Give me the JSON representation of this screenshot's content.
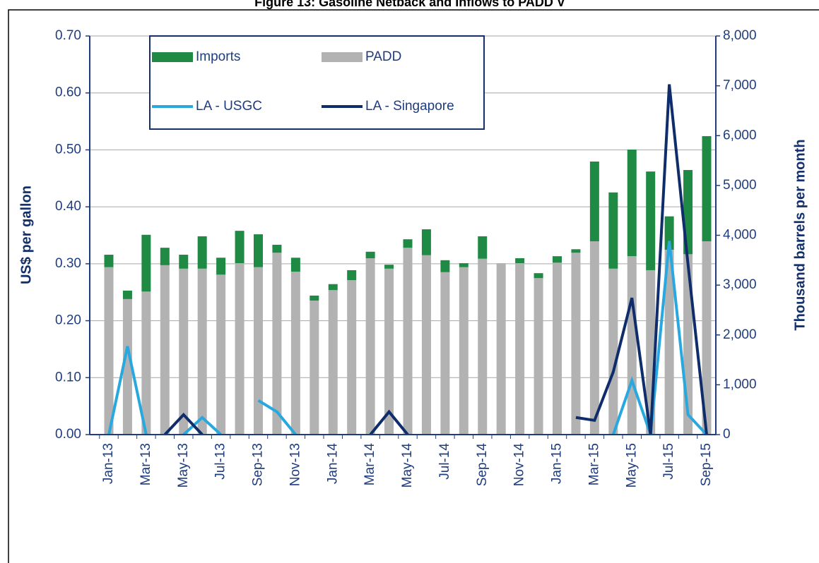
{
  "chart_data": {
    "type": "bar",
    "title": "Figure 13: Gasoline Netback and Inflows to PADD V",
    "y_label": "US$ per gallon",
    "y2_label": "Thousand barrels per month",
    "categories": [
      "Jan-13",
      null,
      "Mar-13",
      null,
      "May-13",
      null,
      "Jul-13",
      null,
      "Sep-13",
      null,
      "Nov-13",
      null,
      "Jan-14",
      null,
      "Mar-14",
      null,
      "May-14",
      null,
      "Jul-14",
      null,
      "Sep-14",
      null,
      "Nov-14",
      null,
      "Jan-15",
      null,
      "Mar-15",
      null,
      "May-15",
      null,
      "Jul-15",
      null,
      "Sep-15"
    ],
    "series": [
      {
        "name": "Imports",
        "type": "bar",
        "axis": "y2",
        "color": "#1e8a44",
        "values": [
          250,
          170,
          1140,
          350,
          280,
          650,
          340,
          650,
          660,
          160,
          280,
          100,
          120,
          200,
          130,
          80,
          170,
          520,
          240,
          80,
          450,
          0,
          100,
          100,
          130,
          70,
          1600,
          1530,
          2140,
          1980,
          670,
          1690,
          2110
        ]
      },
      {
        "name": "PADD",
        "type": "bar",
        "axis": "y2",
        "color": "#b2b2b2",
        "values": [
          3360,
          2720,
          2870,
          3400,
          3330,
          3330,
          3210,
          3440,
          3360,
          3650,
          3270,
          2690,
          2900,
          3100,
          3540,
          3330,
          3750,
          3600,
          3260,
          3360,
          3530,
          3440,
          3440,
          3140,
          3450,
          3650,
          3880,
          3330,
          3580,
          3300,
          3710,
          3620,
          3880
        ]
      },
      {
        "name": "LA - USGC",
        "type": "line",
        "color": "#29a8e0",
        "values": [
          0,
          0.155,
          0,
          null,
          0,
          0.03,
          0,
          null,
          0.06,
          0.04,
          0,
          null,
          null,
          null,
          null,
          null,
          null,
          null,
          null,
          null,
          null,
          null,
          null,
          null,
          null,
          null,
          null,
          0,
          0.095,
          0,
          0.34,
          0.035,
          0
        ]
      },
      {
        "name": "LA - Singapore",
        "type": "line",
        "color": "#0f2d6b",
        "values": [
          null,
          null,
          null,
          0,
          0.035,
          0,
          null,
          null,
          null,
          null,
          null,
          null,
          null,
          null,
          0,
          0.04,
          0,
          null,
          null,
          null,
          null,
          null,
          null,
          null,
          null,
          0.03,
          0.025,
          0.11,
          0.24,
          0,
          0.615,
          0.3,
          0
        ]
      }
    ],
    "ylim": [
      0,
      0.7
    ],
    "yticks": [
      {
        "value": 0,
        "label": "0.00"
      },
      {
        "value": 0.1,
        "label": "0.10"
      },
      {
        "value": 0.2,
        "label": "0.20"
      },
      {
        "value": 0.3,
        "label": "0.30"
      },
      {
        "value": 0.4,
        "label": "0.40"
      },
      {
        "value": 0.5,
        "label": "0.50"
      },
      {
        "value": 0.6,
        "label": "0.60"
      },
      {
        "value": 0.7,
        "label": "0.70"
      }
    ],
    "y2lim": [
      0,
      8000
    ],
    "y2ticks": [
      0,
      {
        "value": 1000,
        "label": "1,000"
      },
      {
        "value": 2000,
        "label": "2,000"
      },
      {
        "value": 3000,
        "label": "3,000"
      },
      {
        "value": 4000,
        "label": "4,000"
      },
      {
        "value": 5000,
        "label": "5,000"
      },
      {
        "value": 6000,
        "label": "6,000"
      },
      {
        "value": 7000,
        "label": "7,000"
      },
      {
        "value": 8000,
        "label": "8,000"
      }
    ],
    "grid": true,
    "legend": "top-left"
  }
}
